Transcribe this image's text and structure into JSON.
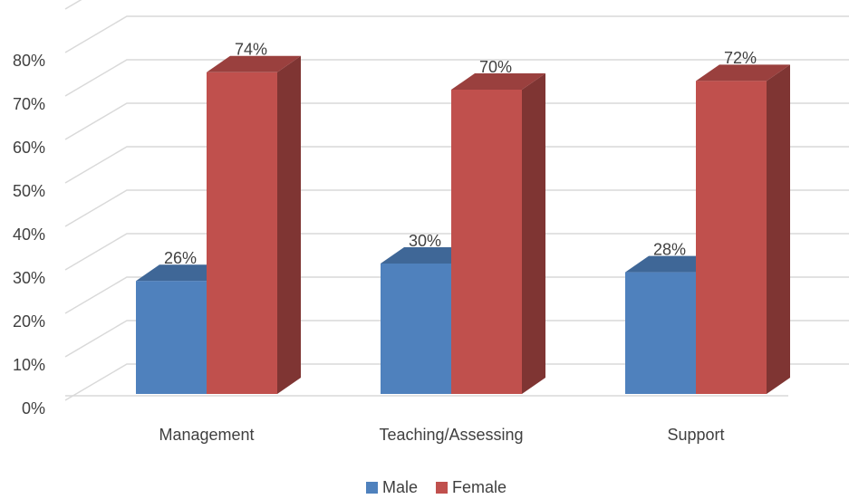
{
  "chart_data": {
    "type": "bar3d",
    "categories": [
      "Management",
      "Teaching/Assessing",
      "Support"
    ],
    "series": [
      {
        "name": "Male",
        "color": "#4f81bd",
        "values": [
          26,
          30,
          28
        ],
        "value_labels": [
          "26%",
          "30%",
          "28%"
        ]
      },
      {
        "name": "Female",
        "color": "#c0504d",
        "values": [
          74,
          70,
          72
        ],
        "value_labels": [
          "74%",
          "70%",
          "72%"
        ]
      }
    ],
    "ylim": [
      0,
      90
    ],
    "yticks": [
      {
        "value": 0,
        "label": "0%"
      },
      {
        "value": 10,
        "label": "10%"
      },
      {
        "value": 20,
        "label": "20%"
      },
      {
        "value": 30,
        "label": "30%"
      },
      {
        "value": 40,
        "label": "40%"
      },
      {
        "value": 50,
        "label": "50%"
      },
      {
        "value": 60,
        "label": "60%"
      },
      {
        "value": 70,
        "label": "70%"
      },
      {
        "value": 80,
        "label": "80%"
      }
    ],
    "grid": true,
    "legend": "bottom"
  }
}
